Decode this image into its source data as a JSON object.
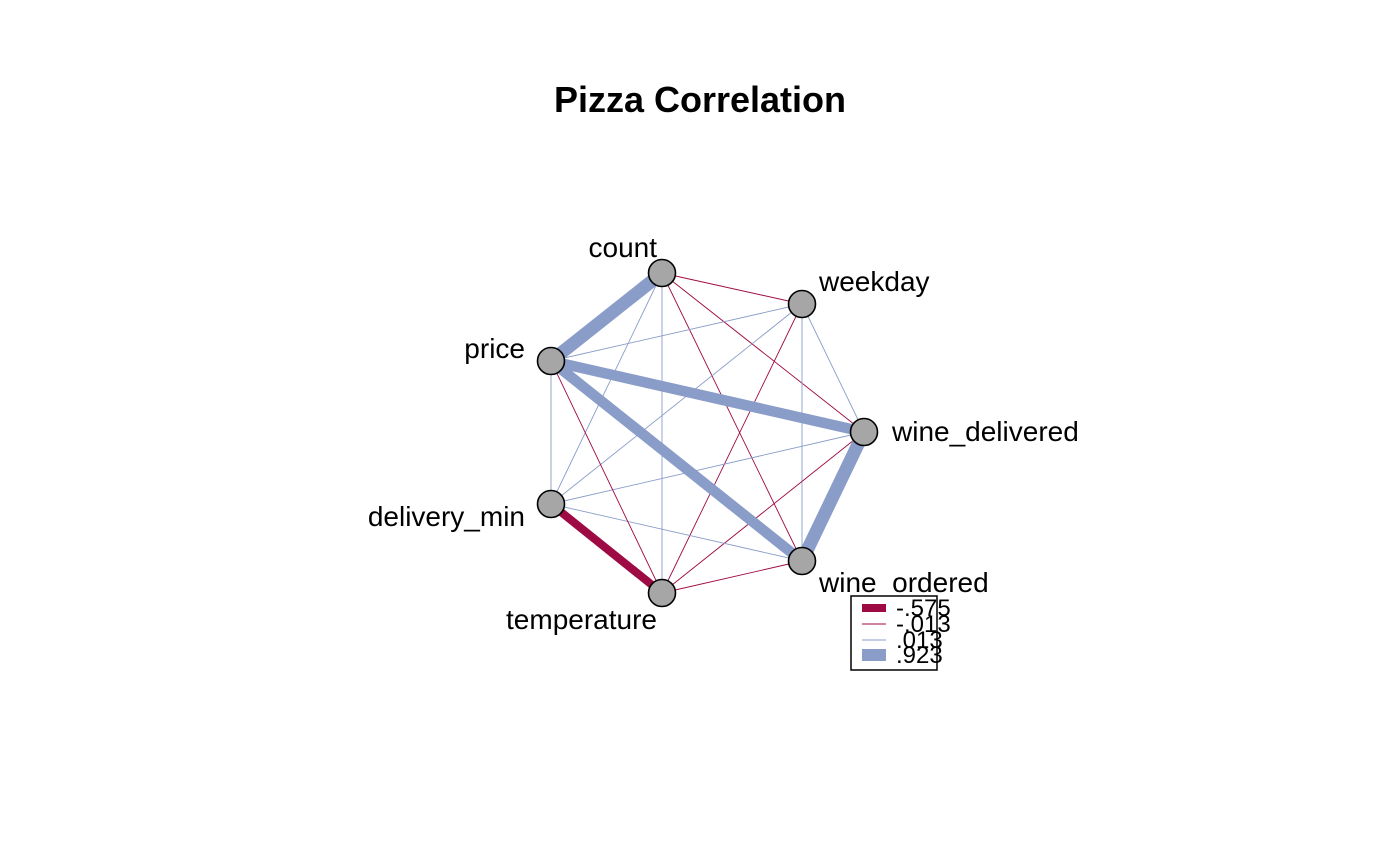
{
  "chart_data": {
    "type": "network",
    "title": "Pizza Correlation",
    "colors": {
      "negative": "#9E0A44",
      "positive": "#8A9DC8",
      "node_fill": "#A6A6A6",
      "node_stroke": "#000000"
    },
    "nodes": [
      {
        "id": "count",
        "label": "count"
      },
      {
        "id": "weekday",
        "label": "weekday"
      },
      {
        "id": "wine_delivered",
        "label": "wine_delivered"
      },
      {
        "id": "wine_ordered",
        "label": "wine_ordered"
      },
      {
        "id": "temperature",
        "label": "temperature"
      },
      {
        "id": "delivery_min",
        "label": "delivery_min"
      },
      {
        "id": "price",
        "label": "price"
      }
    ],
    "edges": [
      {
        "source": "count",
        "target": "price",
        "r": 0.923
      },
      {
        "source": "count",
        "target": "weekday",
        "r": -0.013
      },
      {
        "source": "count",
        "target": "wine_delivered",
        "r": -0.013
      },
      {
        "source": "count",
        "target": "wine_ordered",
        "r": -0.013
      },
      {
        "source": "count",
        "target": "temperature",
        "r": 0.013
      },
      {
        "source": "count",
        "target": "delivery_min",
        "r": 0.013
      },
      {
        "source": "weekday",
        "target": "wine_delivered",
        "r": 0.013
      },
      {
        "source": "weekday",
        "target": "wine_ordered",
        "r": 0.013
      },
      {
        "source": "weekday",
        "target": "temperature",
        "r": -0.013
      },
      {
        "source": "weekday",
        "target": "delivery_min",
        "r": 0.013
      },
      {
        "source": "weekday",
        "target": "price",
        "r": 0.013
      },
      {
        "source": "wine_delivered",
        "target": "wine_ordered",
        "r": 0.923
      },
      {
        "source": "wine_delivered",
        "target": "price",
        "r": 0.75
      },
      {
        "source": "wine_delivered",
        "target": "temperature",
        "r": -0.013
      },
      {
        "source": "wine_delivered",
        "target": "delivery_min",
        "r": 0.013
      },
      {
        "source": "wine_ordered",
        "target": "price",
        "r": 0.75
      },
      {
        "source": "wine_ordered",
        "target": "delivery_min",
        "r": 0.013
      },
      {
        "source": "wine_ordered",
        "target": "temperature",
        "r": -0.013
      },
      {
        "source": "price",
        "target": "delivery_min",
        "r": 0.013
      },
      {
        "source": "price",
        "target": "temperature",
        "r": -0.013
      },
      {
        "source": "delivery_min",
        "target": "temperature",
        "r": -0.575
      }
    ],
    "legend": {
      "placement": "bottom-right",
      "entries": [
        {
          "label": "-.575",
          "r": -0.575
        },
        {
          "label": "-.013",
          "r": -0.013
        },
        {
          "label": ".013",
          "r": 0.013
        },
        {
          "label": ".923",
          "r": 0.923
        }
      ]
    }
  }
}
